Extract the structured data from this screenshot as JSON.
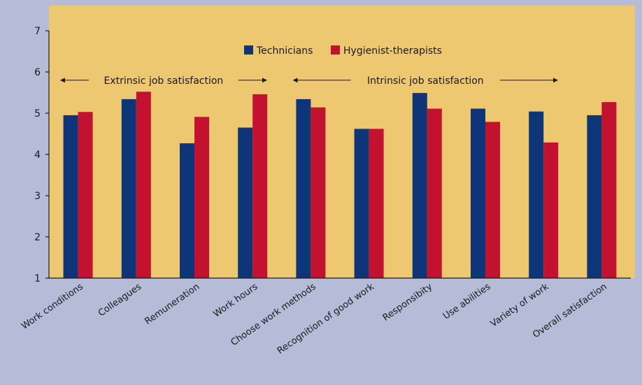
{
  "colors": {
    "page_background": "#b6bcd8",
    "plot_background": "#eec870",
    "series": [
      "#0e3577",
      "#c21230"
    ],
    "axis": "#1a1a1a"
  },
  "chart_data": {
    "type": "bar",
    "title": "",
    "xlabel": "",
    "ylabel": "",
    "ylim": [
      1,
      7
    ],
    "yticks": [
      1,
      2,
      3,
      4,
      5,
      6,
      7
    ],
    "grid": false,
    "legend_position": "top-center",
    "categories": [
      "Work conditions",
      "Colleagues",
      "Remuneration",
      "Work hours",
      "Choose work methods",
      "Recognition of good work",
      "Responsibity",
      "Use abilities",
      "Variety of work",
      "Overall satisfaction"
    ],
    "series": [
      {
        "name": "Technicians",
        "values": [
          4.95,
          5.34,
          4.27,
          4.65,
          5.34,
          4.62,
          5.49,
          5.11,
          5.04,
          4.95
        ]
      },
      {
        "name": "Hygienist-therapists",
        "values": [
          5.03,
          5.52,
          4.91,
          5.46,
          5.14,
          4.62,
          5.11,
          4.79,
          4.29,
          5.27
        ]
      }
    ],
    "annotations": [
      {
        "text": "Extrinsic job satisfaction",
        "from_category": 0,
        "to_category": 3,
        "y": 5.8
      },
      {
        "text": "Intrinsic job satisfaction",
        "from_category": 4,
        "to_category": 8,
        "y": 5.8
      }
    ]
  }
}
